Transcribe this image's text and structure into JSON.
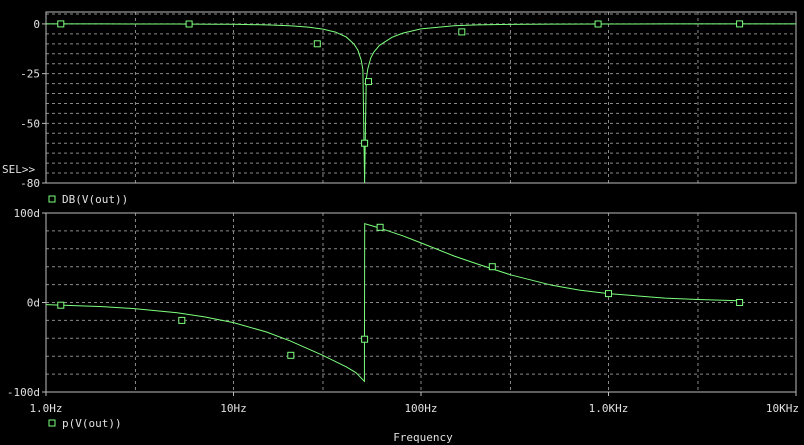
{
  "chart_data": [
    {
      "type": "line",
      "title": "",
      "xlabel": "Frequency",
      "ylabel": "",
      "x_scale": "log",
      "xlim": [
        1,
        10000
      ],
      "ylim": [
        -80,
        6
      ],
      "x_ticks": [
        "1.0Hz",
        "10Hz",
        "100Hz",
        "1.0KHz",
        "10KHz"
      ],
      "y_ticks": [
        {
          "value": 0,
          "label": "0"
        },
        {
          "value": -25,
          "label": "-25"
        },
        {
          "value": -50,
          "label": "-50"
        },
        {
          "value": -80,
          "label": "-80"
        }
      ],
      "y_minor_step": 5,
      "grid": "dotted",
      "selection_marker": "SEL>>",
      "series": [
        {
          "name": "DB(V(out))",
          "color": "#7dff7d",
          "marker": "square",
          "x": [
            1,
            2,
            3,
            4,
            5,
            6,
            8,
            10,
            15,
            20,
            25,
            30,
            35,
            40,
            44,
            46,
            48,
            49,
            50,
            51,
            52,
            54,
            56,
            60,
            70,
            80,
            100,
            150,
            200,
            300,
            500,
            1000,
            2000,
            5000,
            10000
          ],
          "values": [
            -0.001,
            -0.004,
            -0.01,
            -0.02,
            -0.05,
            -0.07,
            -0.13,
            -0.21,
            -0.5,
            -0.95,
            -1.6,
            -2.6,
            -4.1,
            -6.6,
            -10.2,
            -13.1,
            -18.2,
            -23,
            -80,
            -28,
            -22.5,
            -17.1,
            -14.2,
            -10.8,
            -6.7,
            -4.6,
            -2.5,
            -0.96,
            -0.5,
            -0.22,
            -0.08,
            -0.02,
            -0.005,
            -0.001,
            0
          ],
          "markers_x": [
            1.2,
            5.8,
            28,
            50,
            52.5,
            165,
            880,
            5000
          ],
          "markers_y": [
            0,
            -0.06,
            -10,
            -60,
            -29,
            -4,
            -0.02,
            0
          ]
        }
      ]
    },
    {
      "type": "line",
      "title": "",
      "xlabel": "Frequency",
      "ylabel": "",
      "x_scale": "log",
      "xlim": [
        1,
        10000
      ],
      "ylim": [
        -100,
        100
      ],
      "x_ticks": [
        "1.0Hz",
        "10Hz",
        "100Hz",
        "1.0KHz",
        "10KHz"
      ],
      "y_ticks": [
        {
          "value": 100,
          "label": "100d"
        },
        {
          "value": 0,
          "label": "0d"
        },
        {
          "value": -100,
          "label": "-100d"
        }
      ],
      "y_minor_step": 20,
      "grid": "dotted",
      "series": [
        {
          "name": "p(V(out))",
          "color": "#7dff7d",
          "marker": "square",
          "x": [
            1,
            2,
            3,
            5,
            7,
            10,
            15,
            20,
            30,
            40,
            45,
            49.9,
            50.1,
            55,
            60,
            70,
            80,
            100,
            150,
            200,
            300,
            500,
            700,
            1000,
            2000,
            3000,
            5000
          ],
          "values": [
            -2.3,
            -4.6,
            -6.9,
            -11.5,
            -16.1,
            -22.5,
            -33,
            -42.8,
            -59.1,
            -72,
            -78.4,
            -88,
            88,
            85.6,
            83.2,
            78.6,
            74.5,
            66.6,
            52,
            43,
            31,
            19.2,
            13.8,
            9.9,
            4.9,
            3.3,
            2.0
          ],
          "markers_x": [
            1.2,
            5.3,
            20.2,
            50,
            60.5,
            240,
            1000,
            5000
          ],
          "markers_y": [
            -3,
            -20,
            -59,
            -41,
            84,
            40,
            10,
            0
          ]
        }
      ]
    }
  ]
}
